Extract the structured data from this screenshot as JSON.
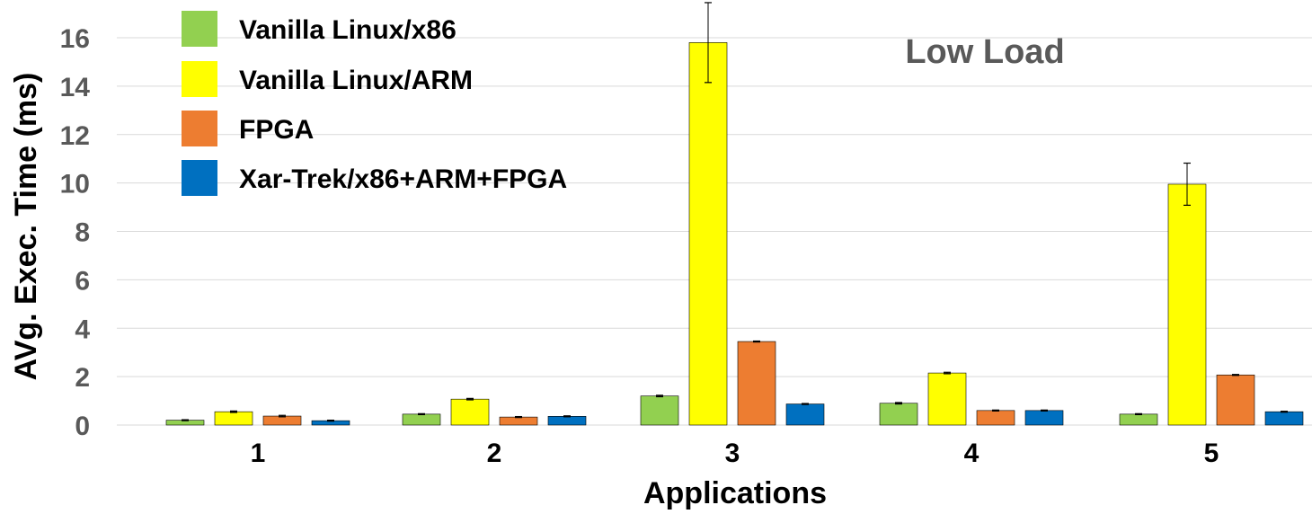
{
  "chart_data": {
    "type": "bar",
    "title": "",
    "annotation": "Low Load",
    "xlabel": "Applications",
    "ylabel": "AVg. Exec. Time (ms)",
    "ylim": [
      0,
      16
    ],
    "yticks": [
      0,
      2,
      4,
      6,
      8,
      10,
      12,
      14,
      16
    ],
    "grid": true,
    "legend_position": "top-left",
    "categories": [
      "1",
      "2",
      "3",
      "4",
      "5"
    ],
    "series": [
      {
        "name": "Vanilla Linux/x86",
        "color": "#92d050",
        "values": [
          0.2,
          0.45,
          1.2,
          0.9,
          0.45
        ],
        "errors": [
          0.02,
          0.02,
          0.03,
          0.03,
          0.02
        ]
      },
      {
        "name": "Vanilla Linux/ARM",
        "color": "#ffff00",
        "values": [
          0.55,
          1.07,
          15.8,
          2.15,
          9.95
        ],
        "errors": [
          0.03,
          0.03,
          1.65,
          0.03,
          0.87
        ]
      },
      {
        "name": "FPGA",
        "color": "#ed7d31",
        "values": [
          0.37,
          0.33,
          3.45,
          0.6,
          2.07
        ],
        "errors": [
          0.03,
          0.02,
          0.02,
          0.02,
          0.02
        ]
      },
      {
        "name": "Xar-Trek/x86+ARM+FPGA",
        "color": "#0070c0",
        "values": [
          0.18,
          0.36,
          0.87,
          0.6,
          0.55
        ],
        "errors": [
          0.02,
          0.02,
          0.02,
          0.02,
          0.02
        ]
      }
    ]
  }
}
